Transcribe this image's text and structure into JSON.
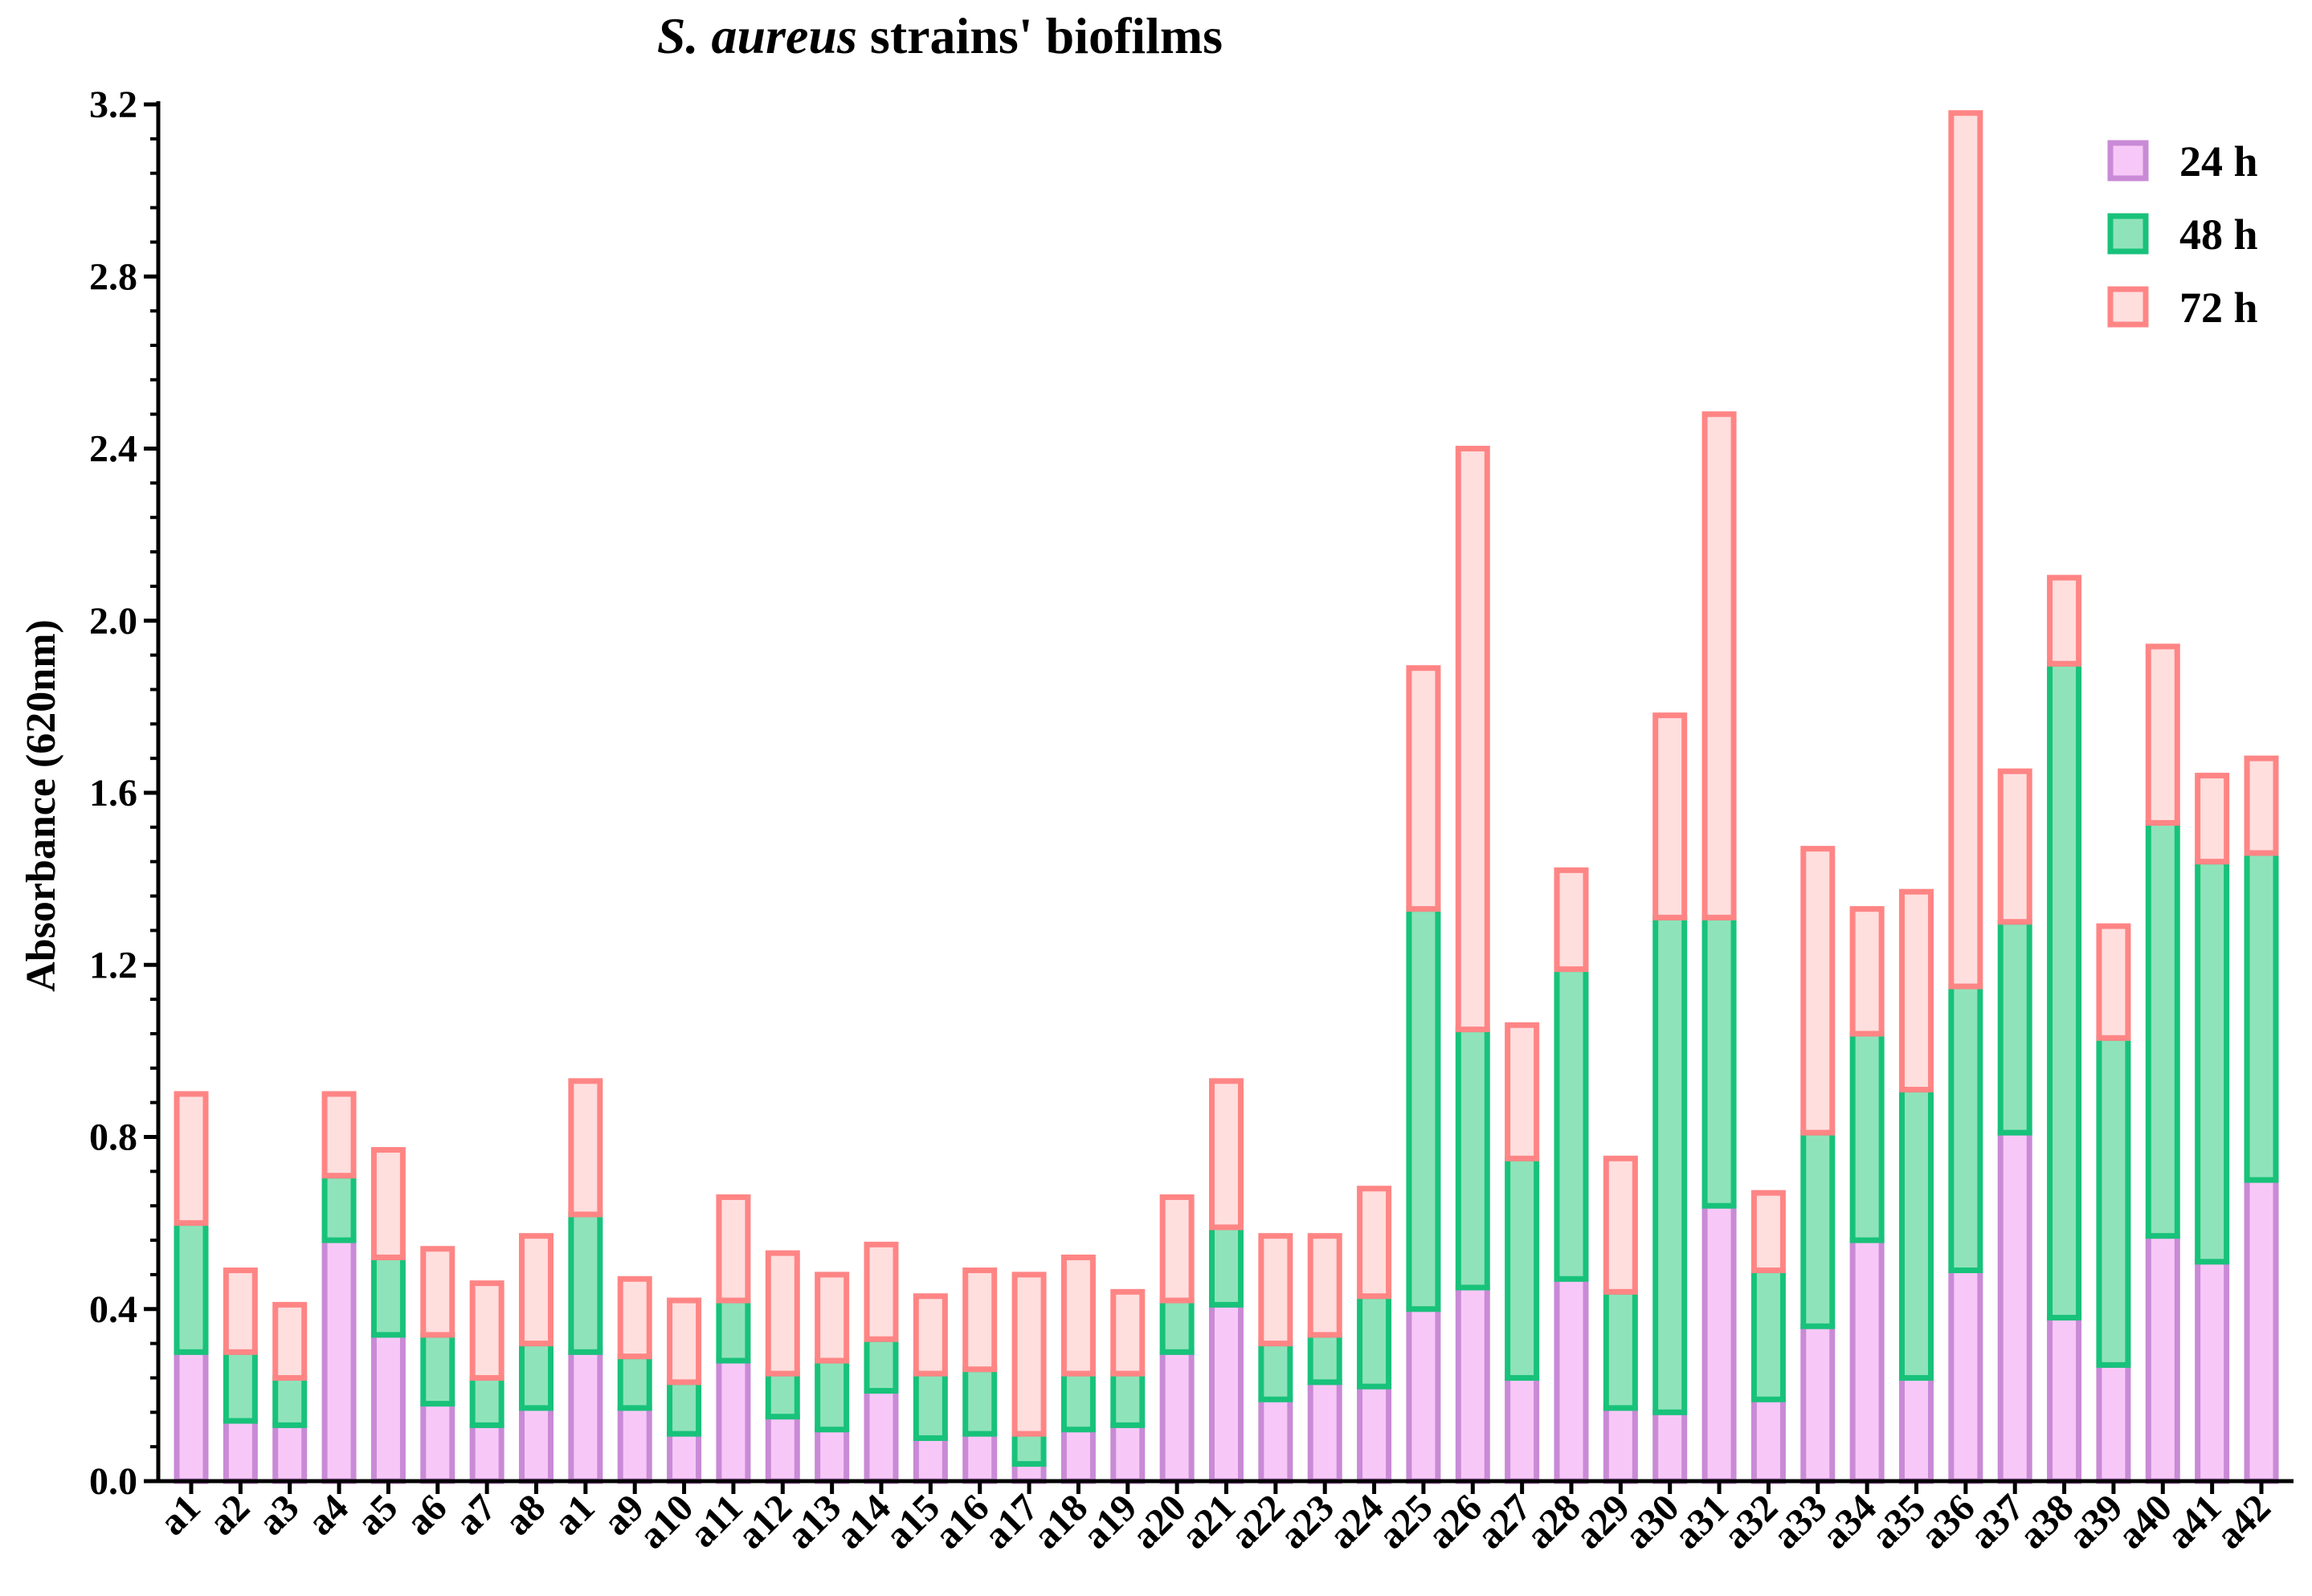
{
  "chart_data": {
    "type": "bar",
    "stacked": true,
    "title_italic": "S. aureus",
    "title_rest": " strains' biofilms",
    "xlabel": "",
    "ylabel": "Absorbance (620nm)",
    "ylim": [
      0,
      3.2
    ],
    "yticks": [
      "0.0",
      "0.4",
      "0.8",
      "1.2",
      "1.6",
      "2.0",
      "2.4",
      "2.8",
      "3.2"
    ],
    "legend_position": "top-right",
    "categories": [
      "a1",
      "a2",
      "a3",
      "a4",
      "a5",
      "a6",
      "a7",
      "a8",
      "a1",
      "a9",
      "a10",
      "a11",
      "a12",
      "a13",
      "a14",
      "a15",
      "a16",
      "a17",
      "a18",
      "a19",
      "a20",
      "a21",
      "a22",
      "a23",
      "a24",
      "a25",
      "a26",
      "a27",
      "a28",
      "a29",
      "a30",
      "a31",
      "a32",
      "a33",
      "a34",
      "a35",
      "a36",
      "a37",
      "a38",
      "a39",
      "a40",
      "a41",
      "a42"
    ],
    "series": [
      {
        "name": "24 h",
        "fill": "#f7c8f7",
        "stroke": "#c98ad6",
        "values": [
          0.3,
          0.14,
          0.13,
          0.56,
          0.34,
          0.18,
          0.13,
          0.17,
          0.3,
          0.17,
          0.11,
          0.28,
          0.15,
          0.12,
          0.21,
          0.1,
          0.11,
          0.04,
          0.12,
          0.13,
          0.3,
          0.41,
          0.19,
          0.23,
          0.22,
          0.4,
          0.45,
          0.24,
          0.47,
          0.17,
          0.16,
          0.64,
          0.19,
          0.36,
          0.56,
          0.24,
          0.49,
          0.81,
          0.38,
          0.27,
          0.57,
          0.51,
          0.7
        ]
      },
      {
        "name": "48 h",
        "fill": "#8fe3ba",
        "stroke": "#18c27a",
        "values": [
          0.3,
          0.16,
          0.11,
          0.15,
          0.18,
          0.16,
          0.11,
          0.15,
          0.32,
          0.12,
          0.12,
          0.14,
          0.1,
          0.16,
          0.12,
          0.15,
          0.15,
          0.07,
          0.13,
          0.12,
          0.12,
          0.18,
          0.13,
          0.11,
          0.21,
          0.93,
          0.6,
          0.51,
          0.72,
          0.27,
          1.15,
          0.67,
          0.3,
          0.45,
          0.48,
          0.67,
          0.66,
          0.49,
          1.52,
          0.76,
          0.96,
          0.93,
          0.76
        ]
      },
      {
        "name": "72 h",
        "fill": "#ffdede",
        "stroke": "#ff8585",
        "values": [
          0.3,
          0.19,
          0.17,
          0.19,
          0.25,
          0.2,
          0.22,
          0.25,
          0.31,
          0.18,
          0.19,
          0.24,
          0.28,
          0.2,
          0.22,
          0.18,
          0.23,
          0.37,
          0.27,
          0.19,
          0.24,
          0.34,
          0.25,
          0.23,
          0.25,
          0.56,
          1.35,
          0.31,
          0.23,
          0.31,
          0.47,
          1.17,
          0.18,
          0.66,
          0.29,
          0.46,
          2.03,
          0.35,
          0.2,
          0.26,
          0.41,
          0.2,
          0.22
        ]
      }
    ]
  }
}
